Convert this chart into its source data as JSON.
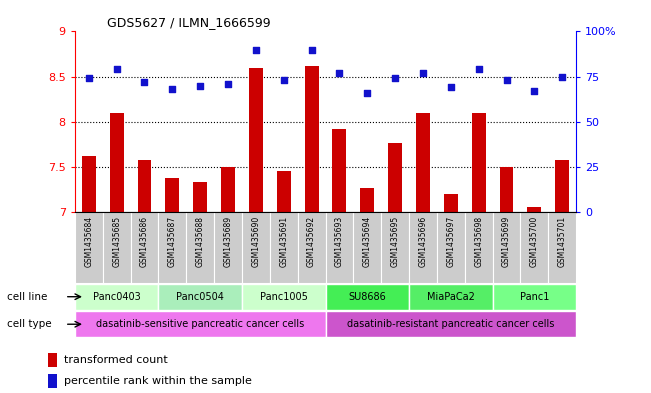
{
  "title": "GDS5627 / ILMN_1666599",
  "samples": [
    "GSM1435684",
    "GSM1435685",
    "GSM1435686",
    "GSM1435687",
    "GSM1435688",
    "GSM1435689",
    "GSM1435690",
    "GSM1435691",
    "GSM1435692",
    "GSM1435693",
    "GSM1435694",
    "GSM1435695",
    "GSM1435696",
    "GSM1435697",
    "GSM1435698",
    "GSM1435699",
    "GSM1435700",
    "GSM1435701"
  ],
  "bar_values": [
    7.62,
    8.1,
    7.58,
    7.38,
    7.33,
    7.5,
    8.6,
    7.46,
    8.62,
    7.92,
    7.27,
    7.77,
    8.1,
    7.2,
    8.1,
    7.5,
    7.06,
    7.58
  ],
  "dot_values": [
    74,
    79,
    72,
    68,
    70,
    71,
    90,
    73,
    90,
    77,
    66,
    74,
    77,
    69,
    79,
    73,
    67,
    75
  ],
  "ylim": [
    7,
    9
  ],
  "yticks": [
    7,
    7.5,
    8,
    8.5,
    9
  ],
  "ytick_labels": [
    "7",
    "7.5",
    "8",
    "8.5",
    "9"
  ],
  "y2lim": [
    0,
    100
  ],
  "y2ticks": [
    0,
    25,
    50,
    75,
    100
  ],
  "y2tick_labels": [
    "0",
    "25",
    "50",
    "75",
    "100%"
  ],
  "bar_color": "#cc0000",
  "dot_color": "#1111cc",
  "bar_width": 0.5,
  "cell_lines": [
    {
      "name": "Panc0403",
      "start": 0,
      "end": 2,
      "color": "#ccffcc"
    },
    {
      "name": "Panc0504",
      "start": 3,
      "end": 5,
      "color": "#aaeebb"
    },
    {
      "name": "Panc1005",
      "start": 6,
      "end": 8,
      "color": "#ccffcc"
    },
    {
      "name": "SU8686",
      "start": 9,
      "end": 11,
      "color": "#44ee55"
    },
    {
      "name": "MiaPaCa2",
      "start": 12,
      "end": 14,
      "color": "#55ee66"
    },
    {
      "name": "Panc1",
      "start": 15,
      "end": 17,
      "color": "#77ff88"
    }
  ],
  "cell_types": [
    {
      "name": "dasatinib-sensitive pancreatic cancer cells",
      "start": 0,
      "end": 8,
      "color": "#ee77ee"
    },
    {
      "name": "dasatinib-resistant pancreatic cancer cells",
      "start": 9,
      "end": 17,
      "color": "#cc55cc"
    }
  ],
  "legend_bar_label": "transformed count",
  "legend_dot_label": "percentile rank within the sample",
  "row_label_cell_line": "cell line",
  "row_label_cell_type": "cell type",
  "xlabel_bg_color": "#cccccc",
  "grid_color": "#000000",
  "grid_style": "dotted"
}
